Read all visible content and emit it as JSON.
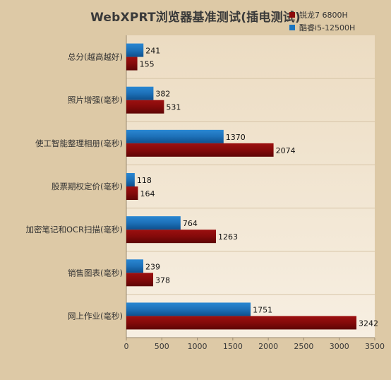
{
  "chart_data": {
    "type": "bar",
    "orientation": "horizontal",
    "title": "WebXPRT浏览器基准测试(插电测试)",
    "categories": [
      "总分(越高越好)",
      "照片增强(毫秒)",
      "使工智能整理相册(毫秒)",
      "股票期权定价(毫秒)",
      "加密笔记和OCR扫描(毫秒)",
      "销售图表(毫秒)",
      "网上作业(毫秒)"
    ],
    "series": [
      {
        "name": "酷睿i5-12500H",
        "color": "#1a74bf",
        "values": [
          241,
          382,
          1370,
          118,
          764,
          239,
          1751
        ]
      },
      {
        "name": "锐龙7 6800H",
        "color": "#8c0a0a",
        "values": [
          155,
          531,
          2074,
          164,
          1263,
          378,
          3242
        ]
      }
    ],
    "legend_order": [
      1,
      0
    ],
    "legend_position": "top-right",
    "xlim": [
      0,
      3500
    ],
    "xticks": [
      0,
      500,
      1000,
      1500,
      2000,
      2500,
      3000,
      3500
    ],
    "grid": false
  }
}
